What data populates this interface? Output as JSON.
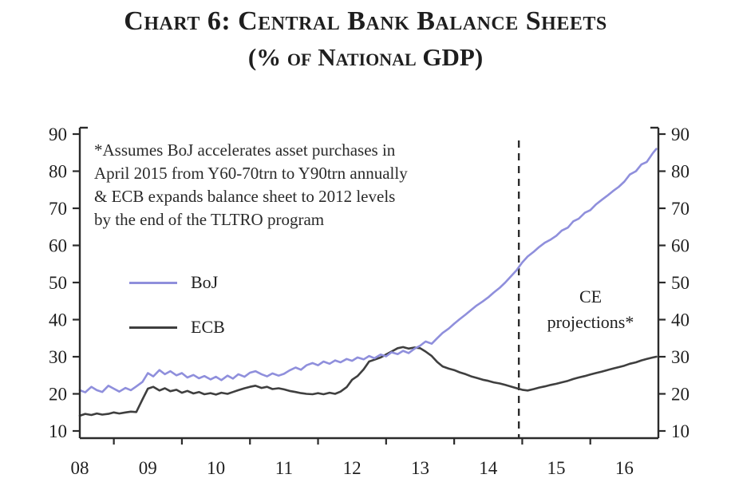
{
  "title": {
    "line1": "Chart 6: Central Bank Balance Sheets",
    "line2": "(% of National GDP)"
  },
  "annotation": {
    "lines": [
      "*Assumes BoJ accelerates asset purchases in",
      "April 2015 from Y60-70trn to Y90trn annually",
      "& ECB expands balance sheet to 2012 levels",
      "by the end of the TLTRO program"
    ]
  },
  "legend": {
    "entries": [
      {
        "label": "BoJ"
      },
      {
        "label": "ECB"
      }
    ]
  },
  "projection_label": {
    "line1": "CE",
    "line2": "projections*"
  },
  "colors": {
    "boj": "#8f8fdc",
    "ecb": "#3f3f3f",
    "axis": "#2b2b2b",
    "text": "#1f1f1f",
    "background": "#ffffff"
  },
  "chart_data": {
    "type": "line",
    "title": "Chart 6: Central Bank Balance Sheets (% of National GDP)",
    "xlabel": "",
    "ylabel": "",
    "xlim": [
      2008,
      2016.5
    ],
    "ylim": [
      10,
      90
    ],
    "y_ticks": [
      10,
      20,
      30,
      40,
      50,
      60,
      70,
      80,
      90
    ],
    "x_tick_positions": [
      2008,
      2009,
      2010,
      2011,
      2012,
      2013,
      2014,
      2015,
      2016
    ],
    "x_tick_labels": [
      "08",
      "09",
      "10",
      "11",
      "12",
      "13",
      "14",
      "15",
      "16"
    ],
    "x_minor_ticks": [
      2008.5,
      2009.5,
      2010.5,
      2011.5,
      2012.5,
      2013.5,
      2014.5,
      2015.5
    ],
    "dual_y_axis": true,
    "grid": false,
    "legend_position": "inside-left",
    "projection_start_x": 2014.45,
    "series": [
      {
        "name": "BoJ",
        "color": "#8f8fdc",
        "points": [
          [
            2008.0,
            21.0
          ],
          [
            2008.08,
            20.4
          ],
          [
            2008.17,
            21.9
          ],
          [
            2008.25,
            21.0
          ],
          [
            2008.33,
            20.5
          ],
          [
            2008.42,
            22.2
          ],
          [
            2008.5,
            21.4
          ],
          [
            2008.58,
            20.6
          ],
          [
            2008.67,
            21.6
          ],
          [
            2008.75,
            21.0
          ],
          [
            2008.83,
            22.0
          ],
          [
            2008.92,
            23.2
          ],
          [
            2009.0,
            25.6
          ],
          [
            2009.08,
            24.7
          ],
          [
            2009.17,
            26.4
          ],
          [
            2009.25,
            25.3
          ],
          [
            2009.33,
            26.1
          ],
          [
            2009.42,
            25.0
          ],
          [
            2009.5,
            25.6
          ],
          [
            2009.58,
            24.4
          ],
          [
            2009.67,
            25.1
          ],
          [
            2009.75,
            24.2
          ],
          [
            2009.83,
            24.8
          ],
          [
            2009.92,
            23.9
          ],
          [
            2010.0,
            24.6
          ],
          [
            2010.08,
            23.7
          ],
          [
            2010.17,
            24.9
          ],
          [
            2010.25,
            24.1
          ],
          [
            2010.33,
            25.3
          ],
          [
            2010.42,
            24.6
          ],
          [
            2010.5,
            25.7
          ],
          [
            2010.58,
            26.1
          ],
          [
            2010.67,
            25.3
          ],
          [
            2010.75,
            24.7
          ],
          [
            2010.83,
            25.5
          ],
          [
            2010.92,
            24.9
          ],
          [
            2011.0,
            25.4
          ],
          [
            2011.08,
            26.3
          ],
          [
            2011.17,
            27.1
          ],
          [
            2011.25,
            26.5
          ],
          [
            2011.33,
            27.7
          ],
          [
            2011.42,
            28.3
          ],
          [
            2011.5,
            27.7
          ],
          [
            2011.58,
            28.7
          ],
          [
            2011.67,
            28.1
          ],
          [
            2011.75,
            29.0
          ],
          [
            2011.83,
            28.5
          ],
          [
            2011.92,
            29.4
          ],
          [
            2012.0,
            28.9
          ],
          [
            2012.08,
            29.8
          ],
          [
            2012.17,
            29.3
          ],
          [
            2012.25,
            30.2
          ],
          [
            2012.33,
            29.6
          ],
          [
            2012.42,
            30.6
          ],
          [
            2012.5,
            30.1
          ],
          [
            2012.58,
            31.2
          ],
          [
            2012.67,
            30.7
          ],
          [
            2012.75,
            31.6
          ],
          [
            2012.83,
            31.0
          ],
          [
            2012.92,
            32.2
          ],
          [
            2013.0,
            33.0
          ],
          [
            2013.08,
            34.1
          ],
          [
            2013.17,
            33.5
          ],
          [
            2013.25,
            35.0
          ],
          [
            2013.33,
            36.4
          ],
          [
            2013.42,
            37.6
          ],
          [
            2013.5,
            38.9
          ],
          [
            2013.58,
            40.1
          ],
          [
            2013.67,
            41.4
          ],
          [
            2013.75,
            42.6
          ],
          [
            2013.83,
            43.8
          ],
          [
            2013.92,
            44.9
          ],
          [
            2014.0,
            46.0
          ],
          [
            2014.08,
            47.3
          ],
          [
            2014.17,
            48.6
          ],
          [
            2014.25,
            50.0
          ],
          [
            2014.33,
            51.6
          ],
          [
            2014.42,
            53.4
          ],
          [
            2014.5,
            55.4
          ],
          [
            2014.58,
            57.0
          ],
          [
            2014.67,
            58.3
          ],
          [
            2014.75,
            59.6
          ],
          [
            2014.83,
            60.7
          ],
          [
            2014.92,
            61.6
          ],
          [
            2015.0,
            62.6
          ],
          [
            2015.08,
            64.0
          ],
          [
            2015.17,
            64.8
          ],
          [
            2015.25,
            66.5
          ],
          [
            2015.33,
            67.2
          ],
          [
            2015.42,
            68.8
          ],
          [
            2015.5,
            69.5
          ],
          [
            2015.58,
            71.0
          ],
          [
            2015.67,
            72.3
          ],
          [
            2015.75,
            73.4
          ],
          [
            2015.83,
            74.6
          ],
          [
            2015.92,
            75.8
          ],
          [
            2016.0,
            77.2
          ],
          [
            2016.08,
            79.1
          ],
          [
            2016.17,
            80.0
          ],
          [
            2016.25,
            81.8
          ],
          [
            2016.33,
            82.5
          ],
          [
            2016.42,
            84.9
          ],
          [
            2016.47,
            86.0
          ]
        ]
      },
      {
        "name": "ECB",
        "color": "#3f3f3f",
        "points": [
          [
            2008.0,
            14.1
          ],
          [
            2008.08,
            14.6
          ],
          [
            2008.17,
            14.3
          ],
          [
            2008.25,
            14.7
          ],
          [
            2008.33,
            14.4
          ],
          [
            2008.42,
            14.6
          ],
          [
            2008.5,
            15.0
          ],
          [
            2008.58,
            14.7
          ],
          [
            2008.67,
            15.0
          ],
          [
            2008.75,
            15.2
          ],
          [
            2008.83,
            15.1
          ],
          [
            2008.92,
            18.5
          ],
          [
            2009.0,
            21.4
          ],
          [
            2009.08,
            21.9
          ],
          [
            2009.17,
            20.9
          ],
          [
            2009.25,
            21.5
          ],
          [
            2009.33,
            20.7
          ],
          [
            2009.42,
            21.1
          ],
          [
            2009.5,
            20.3
          ],
          [
            2009.58,
            20.8
          ],
          [
            2009.67,
            20.1
          ],
          [
            2009.75,
            20.5
          ],
          [
            2009.83,
            19.9
          ],
          [
            2009.92,
            20.2
          ],
          [
            2010.0,
            19.8
          ],
          [
            2010.08,
            20.3
          ],
          [
            2010.17,
            20.0
          ],
          [
            2010.25,
            20.5
          ],
          [
            2010.33,
            21.0
          ],
          [
            2010.42,
            21.5
          ],
          [
            2010.5,
            21.9
          ],
          [
            2010.58,
            22.2
          ],
          [
            2010.67,
            21.6
          ],
          [
            2010.75,
            21.9
          ],
          [
            2010.83,
            21.3
          ],
          [
            2010.92,
            21.5
          ],
          [
            2011.0,
            21.2
          ],
          [
            2011.08,
            20.8
          ],
          [
            2011.17,
            20.5
          ],
          [
            2011.25,
            20.2
          ],
          [
            2011.33,
            20.0
          ],
          [
            2011.42,
            19.9
          ],
          [
            2011.5,
            20.2
          ],
          [
            2011.58,
            19.9
          ],
          [
            2011.67,
            20.3
          ],
          [
            2011.75,
            20.0
          ],
          [
            2011.83,
            20.6
          ],
          [
            2011.92,
            21.8
          ],
          [
            2012.0,
            23.8
          ],
          [
            2012.08,
            24.8
          ],
          [
            2012.17,
            26.6
          ],
          [
            2012.25,
            28.7
          ],
          [
            2012.33,
            29.2
          ],
          [
            2012.42,
            29.8
          ],
          [
            2012.5,
            30.6
          ],
          [
            2012.58,
            31.4
          ],
          [
            2012.67,
            32.3
          ],
          [
            2012.75,
            32.6
          ],
          [
            2012.83,
            32.2
          ],
          [
            2012.92,
            32.5
          ],
          [
            2013.0,
            32.3
          ],
          [
            2013.08,
            31.4
          ],
          [
            2013.17,
            30.2
          ],
          [
            2013.25,
            28.6
          ],
          [
            2013.33,
            27.4
          ],
          [
            2013.42,
            26.8
          ],
          [
            2013.5,
            26.4
          ],
          [
            2013.58,
            25.8
          ],
          [
            2013.67,
            25.3
          ],
          [
            2013.75,
            24.7
          ],
          [
            2013.83,
            24.3
          ],
          [
            2013.92,
            23.8
          ],
          [
            2014.0,
            23.5
          ],
          [
            2014.08,
            23.1
          ],
          [
            2014.17,
            22.8
          ],
          [
            2014.25,
            22.4
          ],
          [
            2014.33,
            22.0
          ],
          [
            2014.42,
            21.5
          ],
          [
            2014.5,
            21.1
          ],
          [
            2014.58,
            20.9
          ],
          [
            2014.67,
            21.3
          ],
          [
            2014.75,
            21.7
          ],
          [
            2014.83,
            22.0
          ],
          [
            2014.92,
            22.4
          ],
          [
            2015.0,
            22.7
          ],
          [
            2015.08,
            23.1
          ],
          [
            2015.17,
            23.5
          ],
          [
            2015.25,
            24.0
          ],
          [
            2015.33,
            24.4
          ],
          [
            2015.42,
            24.8
          ],
          [
            2015.5,
            25.2
          ],
          [
            2015.58,
            25.6
          ],
          [
            2015.67,
            26.0
          ],
          [
            2015.75,
            26.4
          ],
          [
            2015.83,
            26.8
          ],
          [
            2015.92,
            27.2
          ],
          [
            2016.0,
            27.6
          ],
          [
            2016.08,
            28.1
          ],
          [
            2016.17,
            28.5
          ],
          [
            2016.25,
            29.0
          ],
          [
            2016.33,
            29.4
          ],
          [
            2016.42,
            29.8
          ],
          [
            2016.47,
            30.0
          ]
        ]
      }
    ]
  }
}
